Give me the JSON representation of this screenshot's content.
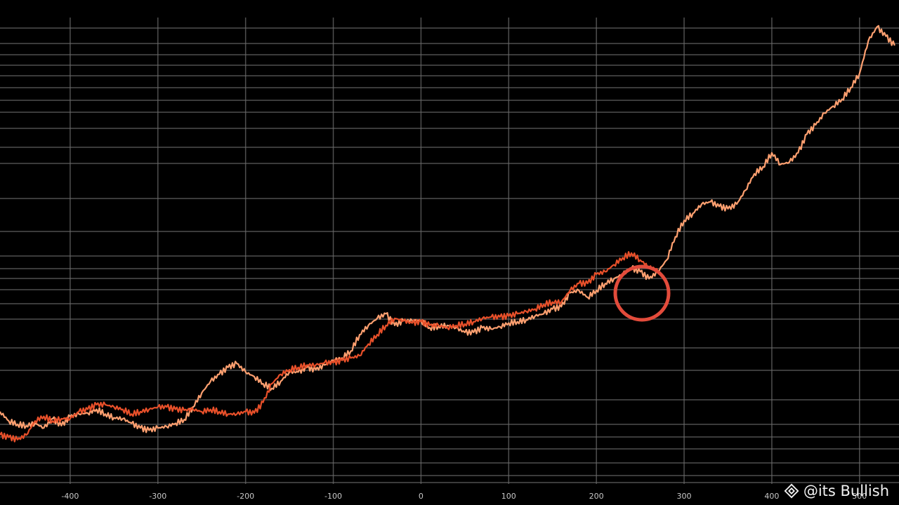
{
  "chart_data": {
    "type": "line",
    "title": "",
    "xlabel": "",
    "ylabel": "",
    "xlim": [
      -480,
      545
    ],
    "ylim": [
      0,
      100
    ],
    "x_ticks": [
      -400,
      -300,
      -200,
      -100,
      0,
      100,
      200,
      300,
      400,
      500
    ],
    "x_tick_labels": [
      "-400",
      "-300",
      "-200",
      "-100",
      "0",
      "100",
      "200",
      "300",
      "400",
      "500"
    ],
    "grid": true,
    "colors": {
      "background": "#000000",
      "grid": "#6a6a6a",
      "series_a": "#ffa070",
      "series_b": "#e8502a",
      "highlight": "#e24b3b"
    },
    "series": [
      {
        "x": [
          -480,
          -470,
          -460,
          -450,
          -440,
          -430,
          -420,
          -410,
          -400,
          -390,
          -380,
          -370,
          -360,
          -350,
          -340,
          -330,
          -320,
          -310,
          -300,
          -290,
          -280,
          -270,
          -260,
          -250,
          -240,
          -230,
          -220,
          -210,
          -200,
          -190,
          -180,
          -170,
          -160,
          -150,
          -140,
          -130,
          -120,
          -110,
          -100,
          -90,
          -80,
          -70,
          -60,
          -50,
          -40,
          -30,
          -20,
          -10,
          0,
          10,
          20,
          30,
          40,
          50,
          60,
          70,
          80,
          90,
          100,
          110,
          120,
          130,
          140,
          150,
          160,
          170,
          180,
          190,
          200,
          210,
          220,
          230,
          240,
          250,
          260,
          270,
          280,
          290,
          300,
          310,
          320,
          330,
          340,
          350,
          360,
          370,
          380,
          390,
          400,
          410,
          420,
          430,
          440,
          450,
          460,
          470,
          480,
          490,
          500,
          510,
          520,
          530,
          540
        ],
        "values": [
          15.5,
          13.5,
          12.8,
          12.5,
          13,
          12,
          14,
          12.5,
          14.5,
          15,
          15.2,
          16,
          15,
          14.2,
          14,
          13,
          12,
          11.5,
          12,
          12.3,
          13,
          13.8,
          16.5,
          19.5,
          22,
          23.5,
          25,
          25.8,
          24,
          23,
          21.5,
          20.5,
          22,
          24,
          24,
          25,
          24.5,
          25.5,
          26.5,
          27,
          28.5,
          32,
          34,
          35.5,
          36.5,
          34,
          35,
          35,
          35,
          33.5,
          33.8,
          34,
          33.5,
          32.5,
          32.5,
          33.5,
          33.2,
          33.7,
          34.5,
          34.8,
          35.2,
          36,
          36.5,
          37.5,
          38,
          41,
          41.5,
          40,
          41.5,
          43,
          44,
          45,
          46.3,
          45.5,
          44,
          45.5,
          48,
          53,
          56.5,
          58,
          60,
          60.5,
          59.5,
          59,
          60,
          63,
          66.5,
          68,
          71,
          68.5,
          69,
          71,
          75,
          77,
          79.5,
          81,
          82.5,
          85,
          88,
          95,
          98,
          96,
          94
        ]
      },
      {
        "x": [
          -480,
          -470,
          -460,
          -450,
          -440,
          -430,
          -420,
          -410,
          -400,
          -390,
          -380,
          -370,
          -360,
          -350,
          -340,
          -330,
          -320,
          -310,
          -300,
          -290,
          -280,
          -270,
          -260,
          -250,
          -240,
          -230,
          -220,
          -210,
          -200,
          -190,
          -180,
          -170,
          -160,
          -150,
          -140,
          -130,
          -120,
          -110,
          -100,
          -90,
          -80,
          -70,
          -60,
          -50,
          -40,
          -30,
          -20,
          -10,
          0,
          10,
          20,
          30,
          40,
          50,
          60,
          70,
          80,
          90,
          100,
          110,
          120,
          130,
          140,
          150,
          160,
          170,
          180,
          190,
          200,
          210,
          220,
          230,
          240,
          250,
          260,
          270
        ],
        "values": [
          10.5,
          10,
          9.5,
          10.5,
          13.5,
          14.5,
          13.5,
          14,
          14,
          15.5,
          16,
          17,
          17,
          16.5,
          16,
          15,
          15.5,
          16,
          16.5,
          16.5,
          16,
          15.8,
          16,
          15.5,
          16,
          15.5,
          15,
          15,
          15.5,
          15.2,
          17.5,
          21.5,
          23.5,
          24.5,
          25,
          25.5,
          25.5,
          26,
          26,
          26.5,
          27,
          27.5,
          30,
          32,
          34,
          35.5,
          35,
          34.5,
          34.8,
          34,
          34,
          33.5,
          34,
          34.3,
          34.8,
          35.5,
          35.8,
          35.8,
          36,
          36.5,
          37,
          37.5,
          38.5,
          39,
          39,
          41.5,
          43,
          43,
          45,
          45.5,
          47,
          48.5,
          49.5,
          48,
          46.5,
          46
        ]
      }
    ]
  },
  "watermark": {
    "text": "@its Bullish",
    "icon": "binance-diamond-icon"
  }
}
